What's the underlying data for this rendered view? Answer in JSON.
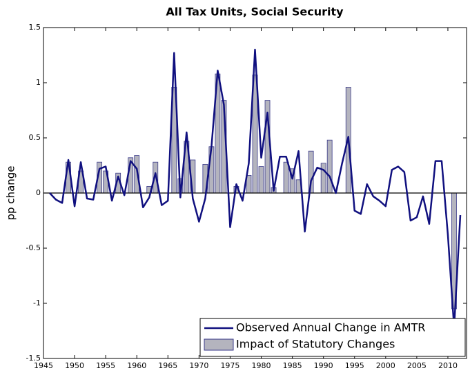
{
  "chart_data": {
    "type": "line-bar",
    "title": "All Tax Units, Social Security",
    "ylabel": "pp change",
    "x": [
      1946,
      1947,
      1948,
      1949,
      1950,
      1951,
      1952,
      1953,
      1954,
      1955,
      1956,
      1957,
      1958,
      1959,
      1960,
      1961,
      1962,
      1963,
      1964,
      1965,
      1966,
      1967,
      1968,
      1969,
      1970,
      1971,
      1972,
      1973,
      1974,
      1975,
      1976,
      1977,
      1978,
      1979,
      1980,
      1981,
      1982,
      1983,
      1984,
      1985,
      1986,
      1987,
      1988,
      1989,
      1990,
      1991,
      1992,
      1993,
      1994,
      1995,
      1996,
      1997,
      1998,
      1999,
      2000,
      2001,
      2002,
      2003,
      2004,
      2005,
      2006,
      2007,
      2008,
      2009,
      2010,
      2011,
      2012
    ],
    "series": [
      {
        "name": "Observed Annual Change in AMTR",
        "kind": "line",
        "color": "#10107f",
        "values": [
          0,
          -0.06,
          -0.09,
          0.3,
          -0.12,
          0.28,
          -0.05,
          -0.06,
          0.22,
          0.24,
          -0.07,
          0.15,
          -0.02,
          0.29,
          0.22,
          -0.13,
          -0.04,
          0.18,
          -0.11,
          -0.07,
          1.27,
          -0.04,
          0.55,
          -0.05,
          -0.26,
          -0.05,
          0.42,
          1.11,
          0.8,
          -0.31,
          0.08,
          -0.07,
          0.27,
          1.3,
          0.32,
          0.73,
          0.02,
          0.33,
          0.33,
          0.13,
          0.38,
          -0.35,
          0.11,
          0.23,
          0.21,
          0.15,
          0.0,
          0.27,
          0.51,
          -0.16,
          -0.19,
          0.08,
          -0.03,
          -0.07,
          -0.12,
          0.21,
          0.24,
          0.19,
          -0.25,
          -0.22,
          -0.03,
          -0.28,
          0.29,
          0.29,
          -0.38,
          -1.22,
          -0.2
        ]
      },
      {
        "name": "Impact of Statutory Changes",
        "kind": "bar",
        "color": "#b4b4be",
        "values": [
          null,
          null,
          null,
          0.28,
          null,
          0.2,
          null,
          null,
          0.28,
          0.2,
          null,
          0.18,
          null,
          0.32,
          0.34,
          null,
          0.06,
          0.28,
          null,
          null,
          0.96,
          0.13,
          0.47,
          0.3,
          null,
          0.26,
          0.42,
          1.08,
          0.84,
          null,
          0.06,
          null,
          0.16,
          1.07,
          0.24,
          0.84,
          0.05,
          null,
          0.28,
          0.22,
          0.12,
          null,
          0.38,
          null,
          0.27,
          0.48,
          null,
          null,
          0.96,
          null,
          null,
          null,
          null,
          null,
          null,
          null,
          null,
          null,
          null,
          null,
          null,
          null,
          null,
          null,
          null,
          -1.05,
          null
        ]
      }
    ],
    "xlim": [
      1945,
      2013
    ],
    "ylim": [
      -1.5,
      1.5
    ],
    "xticks": [
      1945,
      1950,
      1955,
      1960,
      1965,
      1970,
      1975,
      1980,
      1985,
      1990,
      1995,
      2000,
      2005,
      2010
    ],
    "yticks": [
      -1.5,
      -1,
      -0.5,
      0,
      0.5,
      1,
      1.5
    ],
    "legend": "lower right"
  }
}
